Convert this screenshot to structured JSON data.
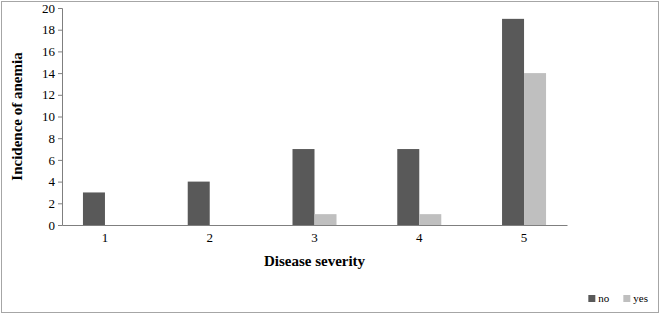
{
  "chart_data": {
    "type": "bar",
    "x_label": "Disease severity",
    "y_label": "Incidence of anemia",
    "categories": [
      "1",
      "2",
      "3",
      "4",
      "5"
    ],
    "series": [
      {
        "name": "no",
        "color": "#595959",
        "values": [
          3,
          4,
          7,
          7,
          19
        ]
      },
      {
        "name": "yes",
        "color": "#bfbfbf",
        "values": [
          0,
          0,
          1,
          1,
          14
        ]
      }
    ],
    "ylim": [
      0,
      20
    ],
    "yticks": [
      0,
      2,
      4,
      6,
      8,
      10,
      12,
      14,
      16,
      18,
      20
    ],
    "grid": false,
    "legend": "bottom-right"
  }
}
